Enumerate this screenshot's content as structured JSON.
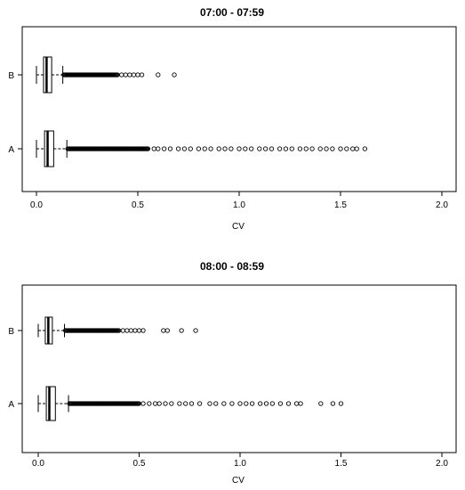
{
  "chart_data": [
    {
      "type": "boxplot",
      "orientation": "horizontal",
      "title": "07:00 - 07:59",
      "xlabel": "CV",
      "xlim": [
        0,
        2.0
      ],
      "x_ticks": [
        "0.0",
        "0.5",
        "1.0",
        "1.5",
        "2.0"
      ],
      "categories": [
        "A",
        "B"
      ],
      "boxes": [
        {
          "name": "A",
          "whisker_low": 0.0,
          "q1": 0.04,
          "median": 0.055,
          "q3": 0.085,
          "whisker_high": 0.15
        },
        {
          "name": "B",
          "whisker_low": 0.0,
          "q1": 0.035,
          "median": 0.05,
          "q3": 0.075,
          "whisker_high": 0.13
        }
      ],
      "outliers": {
        "A": {
          "dense_to": 0.55,
          "points": [
            0.55,
            0.58,
            0.6,
            0.63,
            0.66,
            0.7,
            0.73,
            0.76,
            0.8,
            0.83,
            0.86,
            0.9,
            0.93,
            0.96,
            1.0,
            1.03,
            1.06,
            1.1,
            1.13,
            1.16,
            1.2,
            1.23,
            1.26,
            1.3,
            1.33,
            1.36,
            1.4,
            1.43,
            1.46,
            1.5,
            1.53,
            1.56,
            1.58,
            1.62
          ]
        },
        "B": {
          "dense_to": 0.4,
          "points": [
            0.42,
            0.44,
            0.46,
            0.48,
            0.5,
            0.52,
            0.6,
            0.68
          ]
        }
      }
    },
    {
      "type": "boxplot",
      "orientation": "horizontal",
      "title": "08:00 - 08:59",
      "xlabel": "CV",
      "xlim": [
        0,
        2.0
      ],
      "x_ticks": [
        "0.0",
        "0.5",
        "1.0",
        "1.5",
        "2.0"
      ],
      "categories": [
        "A",
        "B"
      ],
      "boxes": [
        {
          "name": "A",
          "whisker_low": 0.0,
          "q1": 0.04,
          "median": 0.055,
          "q3": 0.085,
          "whisker_high": 0.15
        },
        {
          "name": "B",
          "whisker_low": 0.0,
          "q1": 0.035,
          "median": 0.05,
          "q3": 0.07,
          "whisker_high": 0.13
        }
      ],
      "outliers": {
        "A": {
          "dense_to": 0.5,
          "points": [
            0.52,
            0.55,
            0.58,
            0.6,
            0.63,
            0.66,
            0.7,
            0.73,
            0.76,
            0.8,
            0.85,
            0.88,
            0.92,
            0.96,
            1.0,
            1.03,
            1.06,
            1.1,
            1.13,
            1.16,
            1.2,
            1.24,
            1.28,
            1.3,
            1.4,
            1.46,
            1.5
          ]
        },
        "B": {
          "dense_to": 0.4,
          "points": [
            0.42,
            0.44,
            0.46,
            0.48,
            0.5,
            0.52,
            0.62,
            0.64,
            0.71,
            0.78
          ]
        }
      }
    }
  ]
}
